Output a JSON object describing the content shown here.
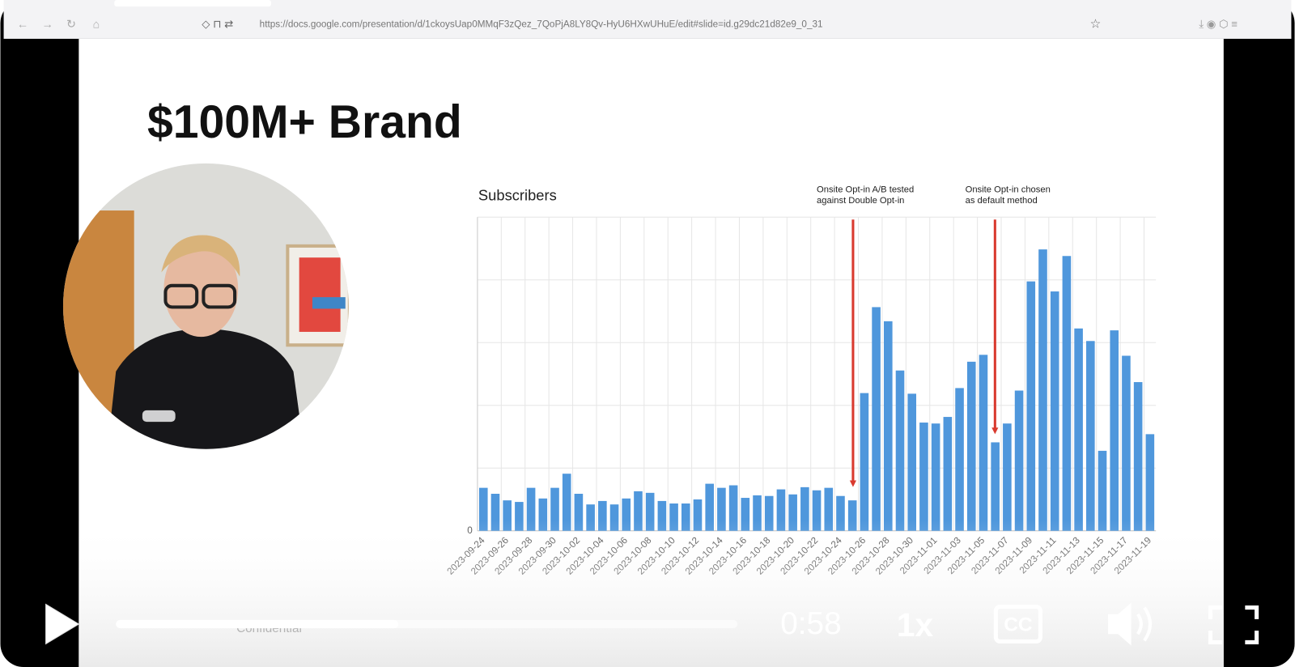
{
  "browser": {
    "url": "https://docs.google.com/presentation/d/1ckoysUap0MMqF3zQez_7QoPjA8LY8Qv-HyU6HXwUHuE/edit#slide=id.g29dc21d82e9_0_31"
  },
  "slide": {
    "title": "$100M+ Brand",
    "footer": "Confidential"
  },
  "chart_data": {
    "type": "bar",
    "title": "Subscribers",
    "categories": [
      "2023-09-24",
      null,
      "2023-09-26",
      null,
      "2023-09-28",
      null,
      "2023-09-30",
      null,
      "2023-10-02",
      null,
      "2023-10-04",
      null,
      "2023-10-06",
      null,
      "2023-10-08",
      null,
      "2023-10-10",
      null,
      "2023-10-12",
      null,
      "2023-10-14",
      null,
      "2023-10-16",
      null,
      "2023-10-18",
      null,
      "2023-10-20",
      null,
      "2023-10-22",
      null,
      "2023-10-24",
      null,
      "2023-10-26",
      null,
      "2023-10-28",
      null,
      "2023-10-30",
      null,
      "2023-11-01",
      null,
      "2023-11-03",
      null,
      "2023-11-05",
      null,
      "2023-11-07",
      null,
      "2023-11-09",
      null,
      "2023-11-11",
      null,
      "2023-11-13",
      null,
      "2023-11-15",
      null,
      "2023-11-17",
      null,
      "2023-11-19"
    ],
    "values": [
      13.7,
      11.8,
      9.7,
      9.2,
      13.7,
      10.3,
      13.7,
      18.2,
      11.8,
      8.4,
      9.5,
      8.4,
      10.3,
      12.6,
      12.1,
      9.5,
      8.7,
      8.7,
      10,
      15,
      13.7,
      14.5,
      10.5,
      11.3,
      11.1,
      13.2,
      11.6,
      13.9,
      12.9,
      13.7,
      11.1,
      9.7,
      43.9,
      71.3,
      66.8,
      51.1,
      43.7,
      34.5,
      34.2,
      36.3,
      45.5,
      53.9,
      56.1,
      28.2,
      34.2,
      44.7,
      79.5,
      89.7,
      76.3,
      87.6,
      64.5,
      60.5,
      25.5,
      63.9,
      55.8,
      47.4,
      30.8
    ],
    "color": "#4f97dc",
    "ylim": [
      0,
      100
    ],
    "yticks": [
      0
    ],
    "ygrid": [
      20,
      40,
      60,
      80,
      100
    ],
    "grid": true,
    "annotations": [
      {
        "lines": [
          "Onsite Opt-in A/B tested",
          "against Double Opt-in"
        ],
        "color": "#d93a2f"
      },
      {
        "lines": [
          "Onsite Opt-in chosen",
          "as default method"
        ],
        "color": "#d93a2f"
      }
    ]
  },
  "player": {
    "time": "0:58",
    "speed": "1x",
    "captions": "CC"
  }
}
